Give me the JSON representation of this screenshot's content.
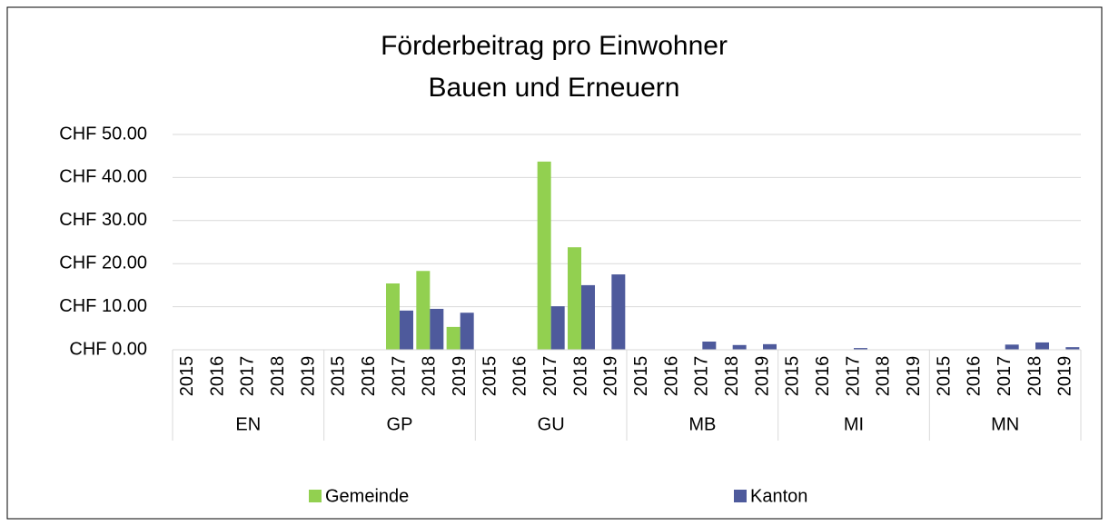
{
  "chart_data": {
    "type": "bar",
    "title": [
      "Förderbeitrag pro Einwohner",
      "Bauen und Erneuern"
    ],
    "categories": [
      "2015",
      "2016",
      "2017",
      "2018",
      "2019",
      "2015",
      "2016",
      "2017",
      "2018",
      "2019",
      "2015",
      "2016",
      "2017",
      "2018",
      "2019",
      "2015",
      "2016",
      "2017",
      "2018",
      "2019",
      "2015",
      "2016",
      "2017",
      "2018",
      "2019",
      "2015",
      "2016",
      "2017",
      "2018",
      "2019"
    ],
    "groups": [
      "EN",
      "GP",
      "GU",
      "MB",
      "MI",
      "MN"
    ],
    "series": [
      {
        "name": "Gemeinde",
        "color": "#92d050",
        "values": [
          0,
          0,
          0,
          0,
          0,
          0,
          0,
          15.4,
          18.3,
          5.3,
          0,
          0,
          43.7,
          23.8,
          0,
          0,
          0,
          0,
          0,
          0,
          0,
          0,
          0,
          0,
          0,
          0,
          0,
          0,
          0,
          0
        ]
      },
      {
        "name": "Kanton",
        "color": "#4e5a9c",
        "values": [
          0,
          0,
          0,
          0,
          0,
          0,
          0,
          9.1,
          9.5,
          8.6,
          0,
          0,
          10.1,
          15.0,
          17.5,
          0,
          0,
          1.9,
          1.1,
          1.3,
          0.1,
          0,
          0.4,
          0,
          0,
          0,
          0,
          1.2,
          1.7,
          0.6
        ]
      }
    ],
    "ylim": [
      0,
      50
    ],
    "yticks": [
      {
        "value": 0,
        "label": "CHF 0.00"
      },
      {
        "value": 10,
        "label": "CHF 10.00"
      },
      {
        "value": 20,
        "label": "CHF 20.00"
      },
      {
        "value": 30,
        "label": "CHF 30.00"
      },
      {
        "value": 40,
        "label": "CHF 40.00"
      },
      {
        "value": 50,
        "label": "CHF 50.00"
      }
    ],
    "grid": true,
    "legend": "bottom"
  }
}
